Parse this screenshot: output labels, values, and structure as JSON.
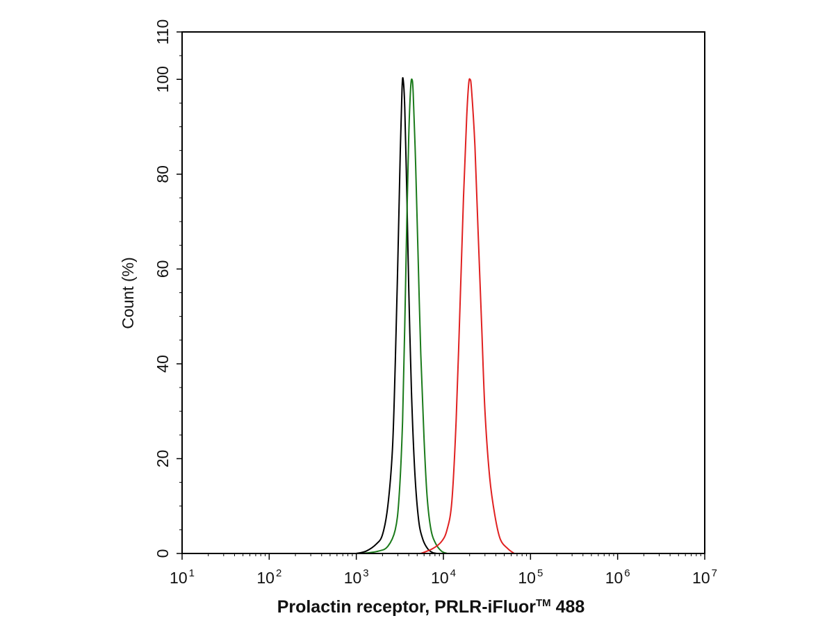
{
  "chart_data": {
    "type": "line",
    "xlabel": "Prolactin receptor, PRLR-iFluor",
    "xlabel_superscript": "TM",
    "xlabel_suffix": " 488",
    "ylabel": "Count  (%)",
    "x_scale": "log",
    "xlim": [
      10,
      10000000
    ],
    "ylim": [
      0,
      110
    ],
    "x_ticks": [
      {
        "base": "10",
        "exp": "1",
        "value": 10
      },
      {
        "base": "10",
        "exp": "2",
        "value": 100
      },
      {
        "base": "10",
        "exp": "3",
        "value": 1000
      },
      {
        "base": "10",
        "exp": "4",
        "value": 10000
      },
      {
        "base": "10",
        "exp": "5",
        "value": 100000
      },
      {
        "base": "10",
        "exp": "6",
        "value": 1000000
      },
      {
        "base": "10",
        "exp": "7",
        "value": 10000000
      }
    ],
    "y_ticks": [
      "0",
      "20",
      "40",
      "60",
      "80",
      "100",
      "110"
    ],
    "y_tick_values": [
      0,
      20,
      40,
      60,
      80,
      100,
      110
    ],
    "grid": false,
    "legend": "none",
    "series": [
      {
        "color": "#000000",
        "points": [
          [
            1000,
            0
          ],
          [
            1300,
            0.5
          ],
          [
            1700,
            2
          ],
          [
            2000,
            4
          ],
          [
            2300,
            10
          ],
          [
            2600,
            22
          ],
          [
            2800,
            40
          ],
          [
            3000,
            62
          ],
          [
            3200,
            85
          ],
          [
            3350,
            98
          ],
          [
            3450,
            100
          ],
          [
            3600,
            94
          ],
          [
            3800,
            76
          ],
          [
            4000,
            56
          ],
          [
            4300,
            34
          ],
          [
            4700,
            17
          ],
          [
            5200,
            7
          ],
          [
            5800,
            3
          ],
          [
            6600,
            1
          ],
          [
            7500,
            0.2
          ],
          [
            8500,
            0
          ]
        ]
      },
      {
        "color": "#1a7a1a",
        "points": [
          [
            1200,
            0
          ],
          [
            1800,
            0.5
          ],
          [
            2300,
            1.5
          ],
          [
            2800,
            5
          ],
          [
            3100,
            12
          ],
          [
            3400,
            28
          ],
          [
            3600,
            48
          ],
          [
            3800,
            70
          ],
          [
            4000,
            88
          ],
          [
            4200,
            98
          ],
          [
            4350,
            100
          ],
          [
            4500,
            97
          ],
          [
            4800,
            82
          ],
          [
            5100,
            64
          ],
          [
            5500,
            42
          ],
          [
            6000,
            24
          ],
          [
            6500,
            12
          ],
          [
            7200,
            5
          ],
          [
            8200,
            2
          ],
          [
            9500,
            0.5
          ],
          [
            11000,
            0
          ]
        ]
      },
      {
        "color": "#e02020",
        "points": [
          [
            5500,
            0
          ],
          [
            7500,
            1
          ],
          [
            9500,
            2.5
          ],
          [
            11000,
            5
          ],
          [
            12500,
            11
          ],
          [
            14000,
            28
          ],
          [
            15500,
            52
          ],
          [
            17000,
            75
          ],
          [
            18500,
            92
          ],
          [
            19500,
            99
          ],
          [
            20200,
            100
          ],
          [
            21000,
            98
          ],
          [
            23000,
            86
          ],
          [
            25000,
            68
          ],
          [
            27500,
            48
          ],
          [
            30000,
            30
          ],
          [
            34000,
            16
          ],
          [
            39000,
            8
          ],
          [
            45000,
            3
          ],
          [
            55000,
            1
          ],
          [
            65000,
            0
          ]
        ]
      }
    ]
  }
}
